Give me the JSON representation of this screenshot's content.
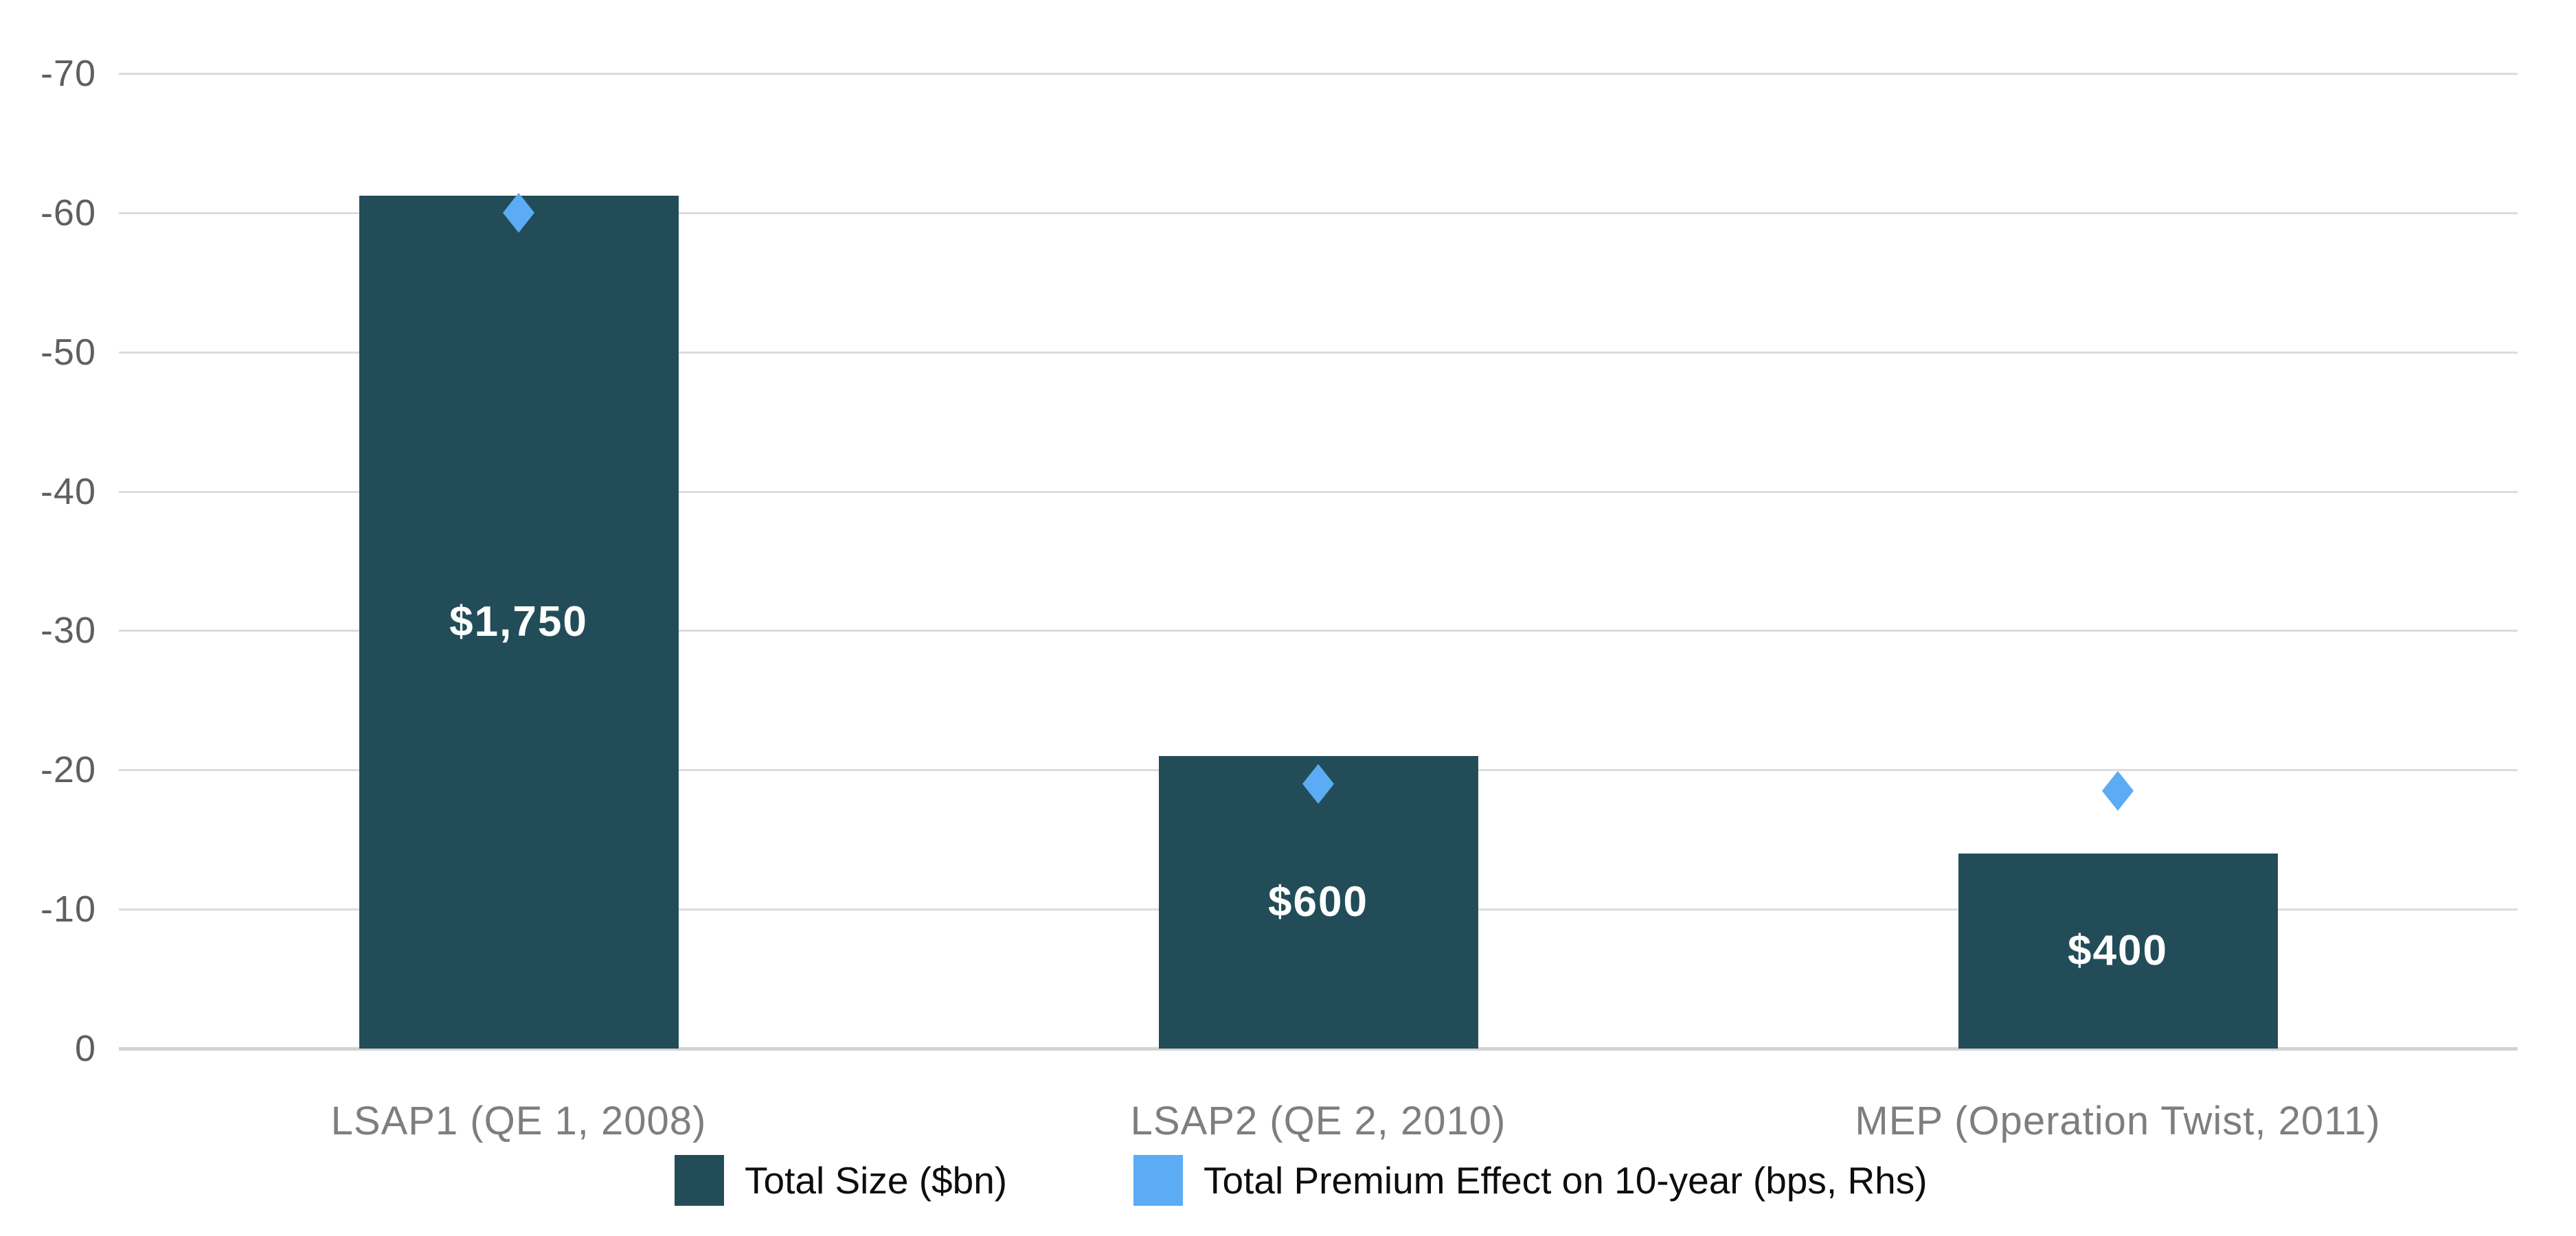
{
  "chart_data": {
    "type": "bar",
    "title": "",
    "categories": [
      "LSAP1 (QE 1, 2008)",
      "LSAP2 (QE 2, 2010)",
      "MEP (Operation Twist, 2011)"
    ],
    "series": [
      {
        "name": "Total Size ($bn)",
        "type": "bar",
        "axis": "right",
        "color": "#224D58",
        "values": [
          1750,
          600,
          400
        ],
        "data_labels": [
          "$1,750",
          "$600",
          "$400"
        ],
        "data_label_color": "#FFFFFF"
      },
      {
        "name": "Total Premium Effect on 10-year (bps, Rhs)",
        "type": "scatter",
        "marker": "diamond",
        "axis": "left",
        "color": "#5BACF5",
        "values": [
          -60,
          -19,
          -18.5
        ]
      }
    ],
    "left_axis": {
      "unit": "bps",
      "range": [
        0,
        -70
      ],
      "inverted": true,
      "ticks": [
        0,
        -10,
        -20,
        -30,
        -40,
        -50,
        -60,
        -70
      ],
      "tick_labels": [
        "0",
        "-10",
        "-20",
        "-30",
        "-40",
        "-50",
        "-60",
        "-70"
      ]
    },
    "secondary_axis": {
      "unit": "$bn",
      "range": [
        0,
        2000
      ],
      "visible": false
    },
    "grid": "horizontal",
    "legend": {
      "position": "bottom",
      "items": [
        {
          "label": "Total Size ($bn)",
          "color": "#224D58",
          "marker": "square"
        },
        {
          "label": "Total Premium Effect on 10-year (bps, Rhs)",
          "color": "#5BACF5",
          "marker": "square"
        }
      ]
    }
  },
  "styles": {
    "gridline_color": "#DCDCDC",
    "baseline_color": "#D2D2D2",
    "tick_text_color": "#5F5F5F",
    "category_text_color": "#7E7E7E",
    "legend_text_color": "#0D0D0D",
    "background": "#FFFFFF"
  }
}
